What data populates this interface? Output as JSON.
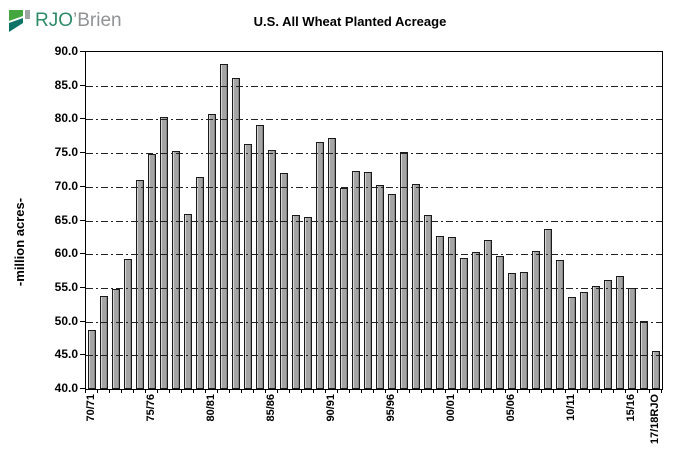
{
  "logo": {
    "primary": "RJO",
    "secondary": "’Brien",
    "colors": {
      "primary_text": "#2e8b69",
      "secondary_text": "#909294",
      "icon_green": "#44a63f",
      "icon_teal": "#0c7366",
      "icon_gray": "#9fa5a4"
    }
  },
  "chart_data": {
    "type": "bar",
    "title": "U.S. All Wheat Planted Acreage",
    "xlabel": "",
    "ylabel": "-million acres-",
    "ylim": [
      40.0,
      90.0
    ],
    "ytick_step": 5.0,
    "grid": true,
    "gridline_style": "dash-dot",
    "legend": "none",
    "bar_color": "#a5a5a5",
    "bar_border_color": "#1a1a1a",
    "n_bars": 48,
    "values": [
      48.7,
      53.8,
      54.9,
      59.3,
      71.0,
      74.9,
      80.4,
      75.3,
      65.9,
      71.4,
      80.8,
      88.3,
      86.2,
      76.4,
      79.2,
      75.5,
      72.0,
      65.8,
      65.5,
      76.6,
      77.2,
      69.9,
      72.3,
      72.2,
      70.3,
      69.0,
      75.1,
      70.4,
      65.8,
      62.7,
      62.6,
      59.4,
      60.3,
      62.1,
      59.7,
      57.2,
      57.3,
      60.5,
      63.8,
      59.2,
      53.6,
      54.4,
      55.3,
      56.2,
      56.8,
      55.0,
      50.1,
      45.7
    ],
    "xticks": [
      {
        "index": 0,
        "label": "70/71"
      },
      {
        "index": 5,
        "label": "75/76"
      },
      {
        "index": 10,
        "label": "80/81"
      },
      {
        "index": 15,
        "label": "85/86"
      },
      {
        "index": 20,
        "label": "90/91"
      },
      {
        "index": 25,
        "label": "95/96"
      },
      {
        "index": 30,
        "label": "00/01"
      },
      {
        "index": 35,
        "label": "05/06"
      },
      {
        "index": 40,
        "label": "10/11"
      },
      {
        "index": 45,
        "label": "15/16"
      },
      {
        "index": 47,
        "label": "17/18RJO"
      }
    ]
  }
}
